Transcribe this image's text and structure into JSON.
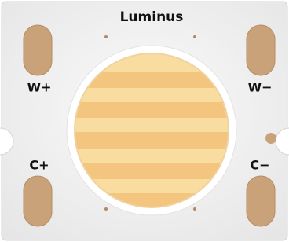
{
  "brand": "Luminus",
  "labels": {
    "w_plus": "W+",
    "w_minus": "W−",
    "c_plus": "C+",
    "c_minus": "C−"
  }
}
